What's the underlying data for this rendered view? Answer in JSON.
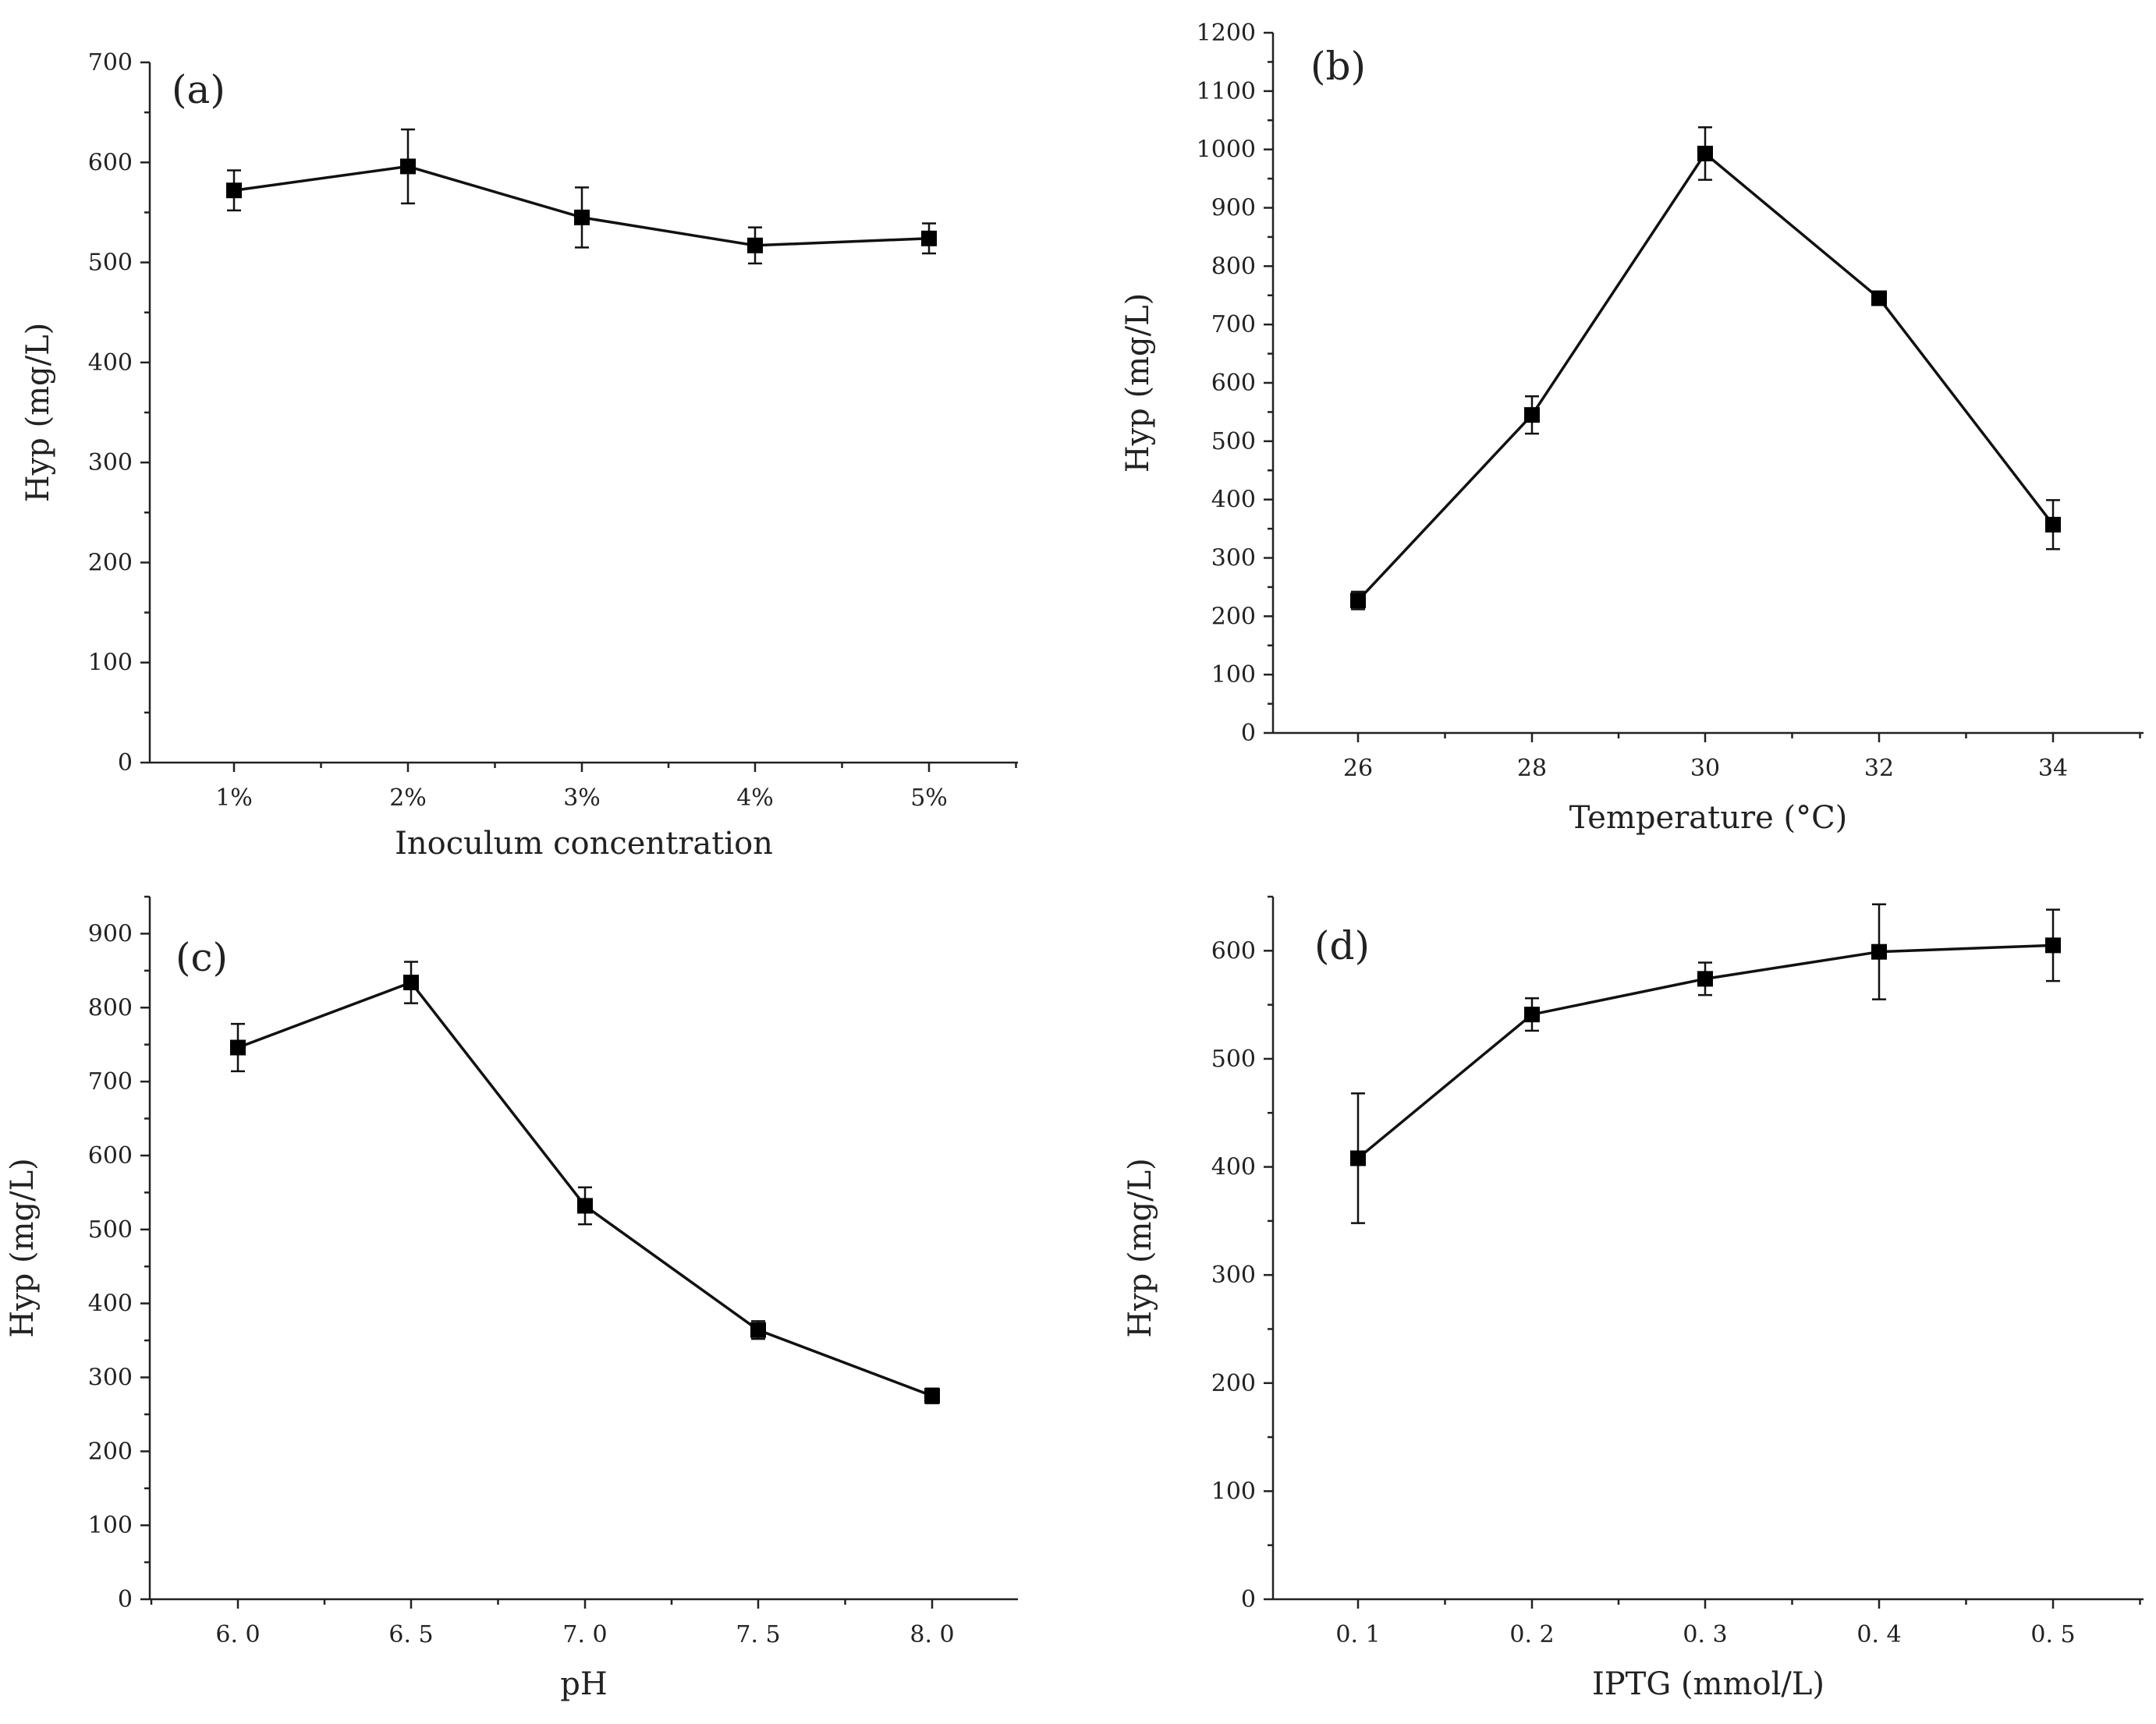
{
  "chart_data": [
    {
      "panel": "(a)",
      "type": "line",
      "xlabel": "Inoculum concentration",
      "ylabel": "Hyp (mg/L)",
      "ylim": [
        0,
        700
      ],
      "yticks": [
        0,
        100,
        200,
        300,
        400,
        500,
        600,
        700
      ],
      "categories": [
        "1%",
        "2%",
        "3%",
        "4%",
        "5%"
      ],
      "values": [
        572,
        596,
        545,
        517,
        524
      ],
      "errors": [
        20,
        37,
        30,
        18,
        15
      ]
    },
    {
      "panel": "(b)",
      "type": "line",
      "xlabel": "Temperature (°C)",
      "ylabel": "Hyp (mg/L)",
      "ylim": [
        0,
        1200
      ],
      "yticks": [
        0,
        100,
        200,
        300,
        400,
        500,
        600,
        700,
        800,
        900,
        1000,
        1100,
        1200
      ],
      "categories": [
        "26",
        "28",
        "30",
        "32",
        "34"
      ],
      "values": [
        227,
        545,
        993,
        745,
        357
      ],
      "errors": [
        15,
        32,
        45,
        6,
        42
      ]
    },
    {
      "panel": "(c)",
      "type": "line",
      "xlabel": "pH",
      "ylabel": "Hyp (mg/L)",
      "ylim": [
        0,
        950
      ],
      "yticks": [
        0,
        100,
        200,
        300,
        400,
        500,
        600,
        700,
        800,
        900
      ],
      "categories": [
        "6. 0",
        "6. 5",
        "7. 0",
        "7. 5",
        "8. 0"
      ],
      "values": [
        746,
        834,
        532,
        364,
        275
      ],
      "errors": [
        32,
        28,
        25,
        12,
        10
      ]
    },
    {
      "panel": "(d)",
      "type": "line",
      "xlabel": "IPTG (mmol/L)",
      "ylabel": "Hyp (mg/L)",
      "ylim": [
        0,
        650
      ],
      "yticks": [
        0,
        100,
        200,
        300,
        400,
        500,
        600
      ],
      "categories": [
        "0. 1",
        "0. 2",
        "0. 3",
        "0. 4",
        "0. 5"
      ],
      "values": [
        408,
        541,
        574,
        599,
        605
      ],
      "errors": [
        60,
        15,
        15,
        44,
        33
      ]
    }
  ]
}
